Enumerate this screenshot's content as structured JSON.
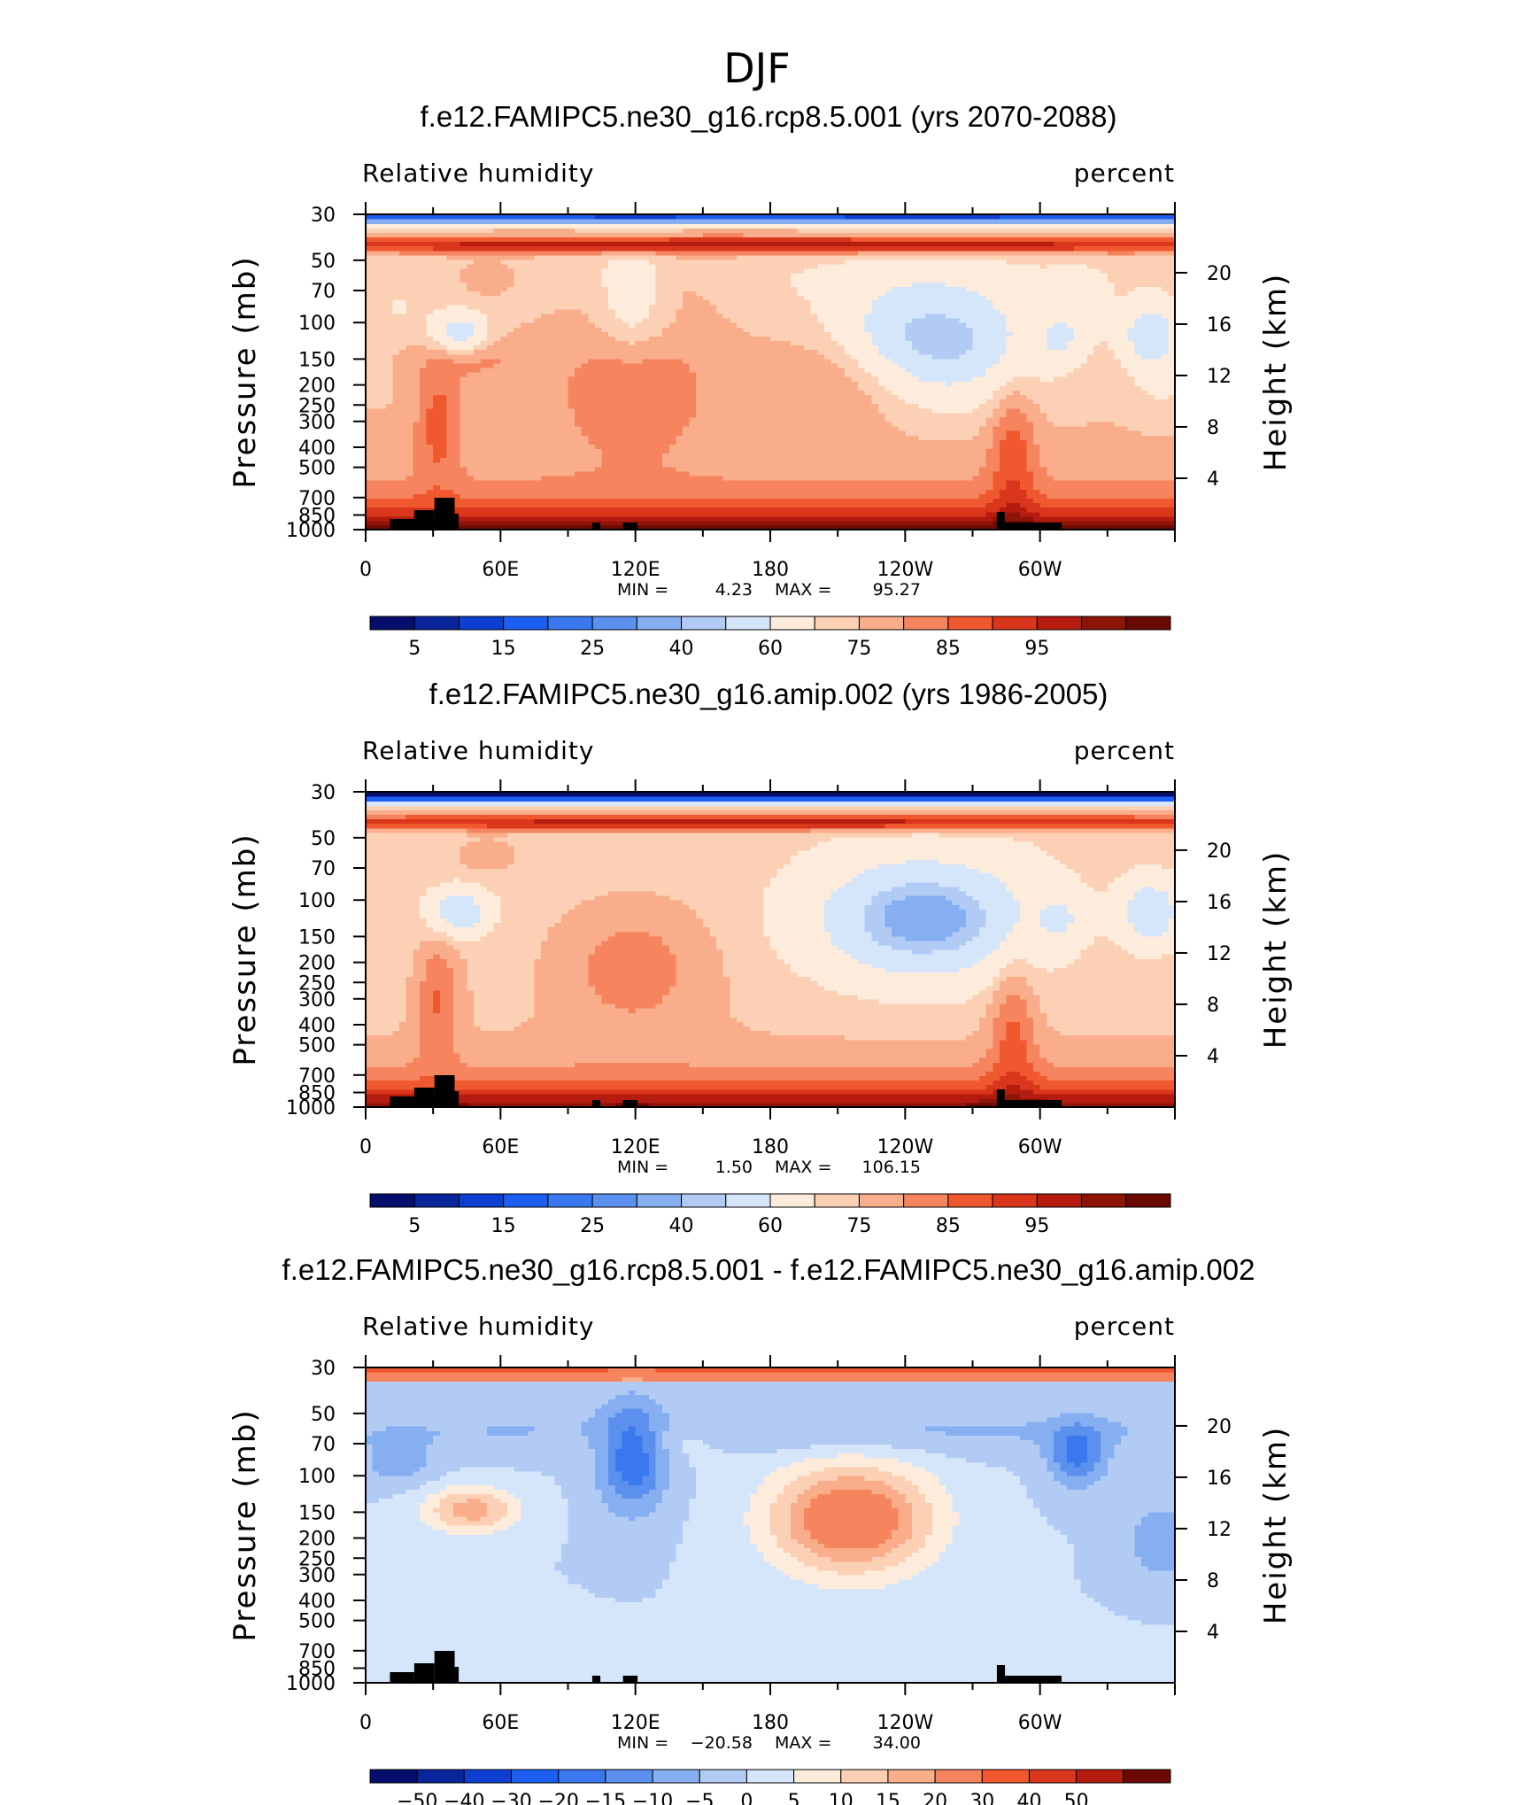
{
  "figure": {
    "suptitle": "DJF"
  },
  "chart_data": [
    {
      "type": "heatmap",
      "title": "f.e12.FAMIPC5.ne30_g16.rcp8.5.001 (yrs 2070-2088)",
      "left_label": "Relative humidity",
      "right_label": "percent",
      "ylabel": "Pressure (mb)",
      "ylabel_right": "Height (km)",
      "x_tick_labels": [
        "0",
        "60E",
        "120E",
        "180",
        "120W",
        "60W"
      ],
      "xlim": [
        0,
        360
      ],
      "pressure_ticks": [
        "30",
        "50",
        "70",
        "100",
        "150",
        "200",
        "250",
        "300",
        "400",
        "500",
        "700",
        "850",
        "1000"
      ],
      "ylim": [
        1000,
        30
      ],
      "height_ticks": [
        "20",
        "16",
        "12",
        "8",
        "4"
      ],
      "min_label": "MIN =",
      "min_value": "4.23",
      "max_label": "MAX =",
      "max_value": "95.27",
      "colorbar_labels": [
        "5",
        "15",
        "25",
        "40",
        "60",
        "75",
        "85",
        "95"
      ],
      "colorbar_levels": [
        5,
        10,
        15,
        20,
        25,
        30,
        35,
        40,
        50,
        60,
        65,
        70,
        75,
        80,
        85,
        90,
        95
      ],
      "palette": [
        "#050e6b",
        "#08259c",
        "#0c3fd1",
        "#1d5ef2",
        "#3a78f0",
        "#5c90ee",
        "#86aff1",
        "#b2cbf5",
        "#d6e6fa",
        "#fdecdc",
        "#fcd0b4",
        "#f9ad8b",
        "#f6845f",
        "#f0582f",
        "#d9361c",
        "#b51c0f",
        "#8f1408",
        "#6a0a03"
      ],
      "contour_values": [
        4,
        95
      ],
      "feature": "anomaly-high"
    },
    {
      "type": "heatmap",
      "title": "f.e12.FAMIPC5.ne30_g16.amip.002 (yrs 1986-2005)",
      "left_label": "Relative humidity",
      "right_label": "percent",
      "ylabel": "Pressure (mb)",
      "ylabel_right": "Height (km)",
      "x_tick_labels": [
        "0",
        "60E",
        "120E",
        "180",
        "120W",
        "60W"
      ],
      "xlim": [
        0,
        360
      ],
      "pressure_ticks": [
        "30",
        "50",
        "70",
        "100",
        "150",
        "200",
        "250",
        "300",
        "400",
        "500",
        "700",
        "850",
        "1000"
      ],
      "ylim": [
        1000,
        30
      ],
      "height_ticks": [
        "20",
        "16",
        "12",
        "8",
        "4"
      ],
      "min_label": "MIN =",
      "min_value": "1.50",
      "max_label": "MAX =",
      "max_value": "106.15",
      "colorbar_labels": [
        "5",
        "15",
        "25",
        "40",
        "60",
        "75",
        "85",
        "95"
      ],
      "colorbar_levels": [
        5,
        10,
        15,
        20,
        25,
        30,
        35,
        40,
        50,
        60,
        65,
        70,
        75,
        80,
        85,
        90,
        95
      ],
      "palette": [
        "#050e6b",
        "#08259c",
        "#0c3fd1",
        "#1d5ef2",
        "#3a78f0",
        "#5c90ee",
        "#86aff1",
        "#b2cbf5",
        "#d6e6fa",
        "#fdecdc",
        "#fcd0b4",
        "#f9ad8b",
        "#f6845f",
        "#f0582f",
        "#d9361c",
        "#b51c0f",
        "#8f1408",
        "#6a0a03"
      ],
      "contour_values": [
        1,
        106
      ],
      "feature": "base"
    },
    {
      "type": "heatmap",
      "title": "f.e12.FAMIPC5.ne30_g16.rcp8.5.001 - f.e12.FAMIPC5.ne30_g16.amip.002",
      "left_label": "Relative humidity",
      "right_label": "percent",
      "ylabel": "Pressure (mb)",
      "ylabel_right": "Height (km)",
      "x_tick_labels": [
        "0",
        "60E",
        "120E",
        "180",
        "120W",
        "60W"
      ],
      "xlim": [
        0,
        360
      ],
      "pressure_ticks": [
        "30",
        "50",
        "70",
        "100",
        "150",
        "200",
        "250",
        "300",
        "400",
        "500",
        "700",
        "850",
        "1000"
      ],
      "ylim": [
        1000,
        30
      ],
      "height_ticks": [
        "20",
        "16",
        "12",
        "8",
        "4"
      ],
      "min_label": "MIN =",
      "min_value": "−20.58",
      "max_label": "MAX =",
      "max_value": "34.00",
      "colorbar_labels": [
        "−50",
        "−40",
        "−30",
        "−20",
        "−15",
        "−10",
        "−5",
        "0",
        "5",
        "10",
        "15",
        "20",
        "30",
        "40",
        "50"
      ],
      "colorbar_levels": [
        -50,
        -40,
        -30,
        -20,
        -15,
        -10,
        -5,
        0,
        5,
        10,
        15,
        20,
        30,
        40,
        50
      ],
      "palette": [
        "#050e6b",
        "#08259c",
        "#0c3fd1",
        "#1d5ef2",
        "#3a78f0",
        "#5c90ee",
        "#86aff1",
        "#b2cbf5",
        "#d6e6fa",
        "#fdecdc",
        "#fcd0b4",
        "#f9ad8b",
        "#f6845f",
        "#f0582f",
        "#d9361c",
        "#b51c0f",
        "#6a0a03"
      ],
      "contour_values": [
        -20.58,
        34.0
      ],
      "feature": "diff"
    }
  ]
}
